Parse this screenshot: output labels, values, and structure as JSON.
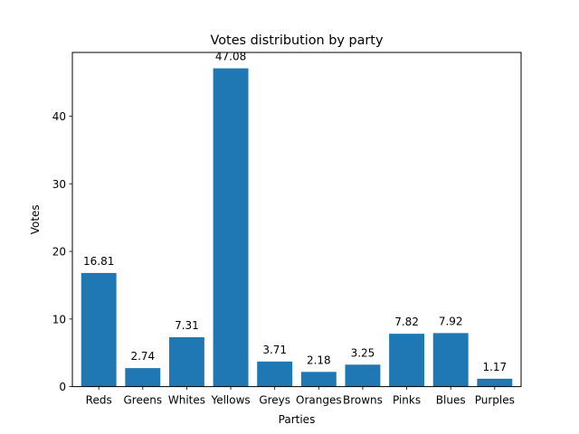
{
  "chart_data": {
    "type": "bar",
    "title": "Votes distribution by party",
    "xlabel": "Parties",
    "ylabel": "Votes",
    "categories": [
      "Reds",
      "Greens",
      "Whites",
      "Yellows",
      "Greys",
      "Oranges",
      "Browns",
      "Pinks",
      "Blues",
      "Purples"
    ],
    "values": [
      16.81,
      2.74,
      7.31,
      47.08,
      3.71,
      2.18,
      3.25,
      7.82,
      7.92,
      1.17
    ],
    "value_labels": [
      "16.81",
      "2.74",
      "7.31",
      "47.08",
      "3.71",
      "2.18",
      "3.25",
      "7.82",
      "7.92",
      "1.17"
    ],
    "ylim": [
      0,
      49.43
    ],
    "yticks": [
      0,
      10,
      20,
      30,
      40
    ],
    "ytick_labels": [
      "0",
      "10",
      "20",
      "30",
      "40"
    ],
    "bar_color": "#1f77b4",
    "grid": false,
    "legend": "none"
  }
}
